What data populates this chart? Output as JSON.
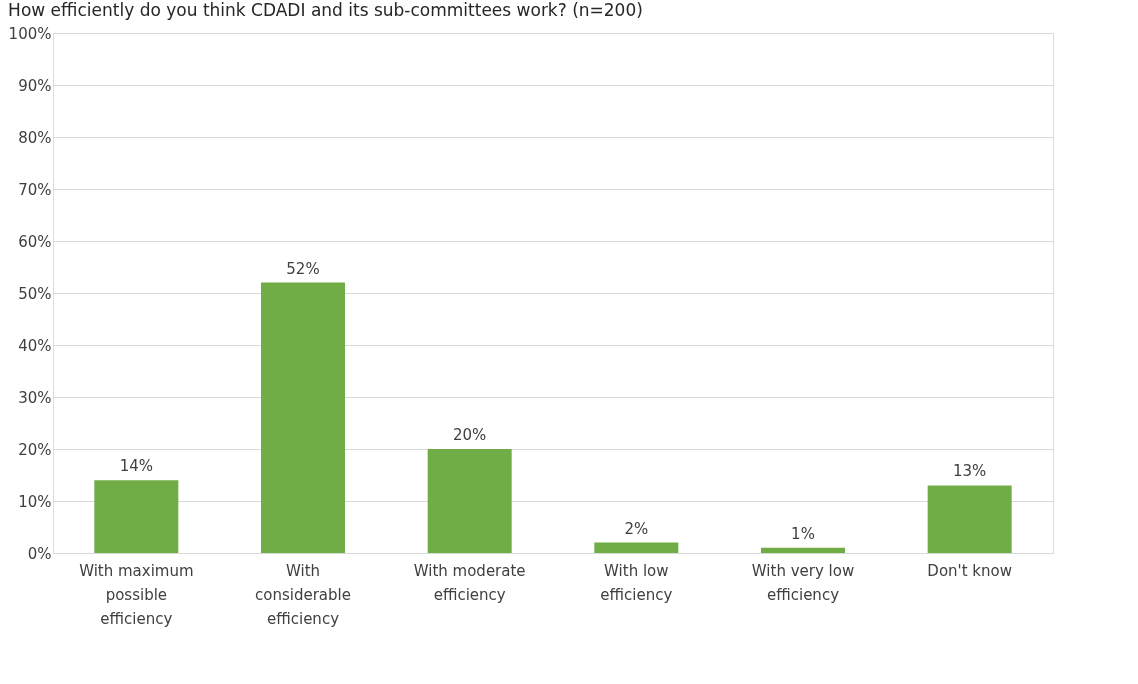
{
  "chart_data": {
    "type": "bar",
    "title": "How efficiently do you think CDADI and its sub-committees work? (n=200)",
    "categories": [
      "With maximum possible efficiency",
      "With considerable efficiency",
      "With moderate efficiency",
      "With low efficiency",
      "With very low efficiency",
      "Don't know"
    ],
    "values": [
      14,
      52,
      20,
      2,
      1,
      13
    ],
    "color": "#70ad47",
    "data_labels": true,
    "value_labels": [
      "14%",
      "52%",
      "20%",
      "2%",
      "1%",
      "13%"
    ],
    "ylim": [
      0,
      100
    ],
    "yticks": [
      {
        "value": 0,
        "label": "0%"
      },
      {
        "value": 10,
        "label": "10%"
      },
      {
        "value": 20,
        "label": "20%"
      },
      {
        "value": 30,
        "label": "30%"
      },
      {
        "value": 40,
        "label": "40%"
      },
      {
        "value": 50,
        "label": "50%"
      },
      {
        "value": 60,
        "label": "60%"
      },
      {
        "value": 70,
        "label": "70%"
      },
      {
        "value": 80,
        "label": "80%"
      },
      {
        "value": 90,
        "label": "90%"
      },
      {
        "value": 100,
        "label": "100%"
      }
    ],
    "grid": "y"
  }
}
